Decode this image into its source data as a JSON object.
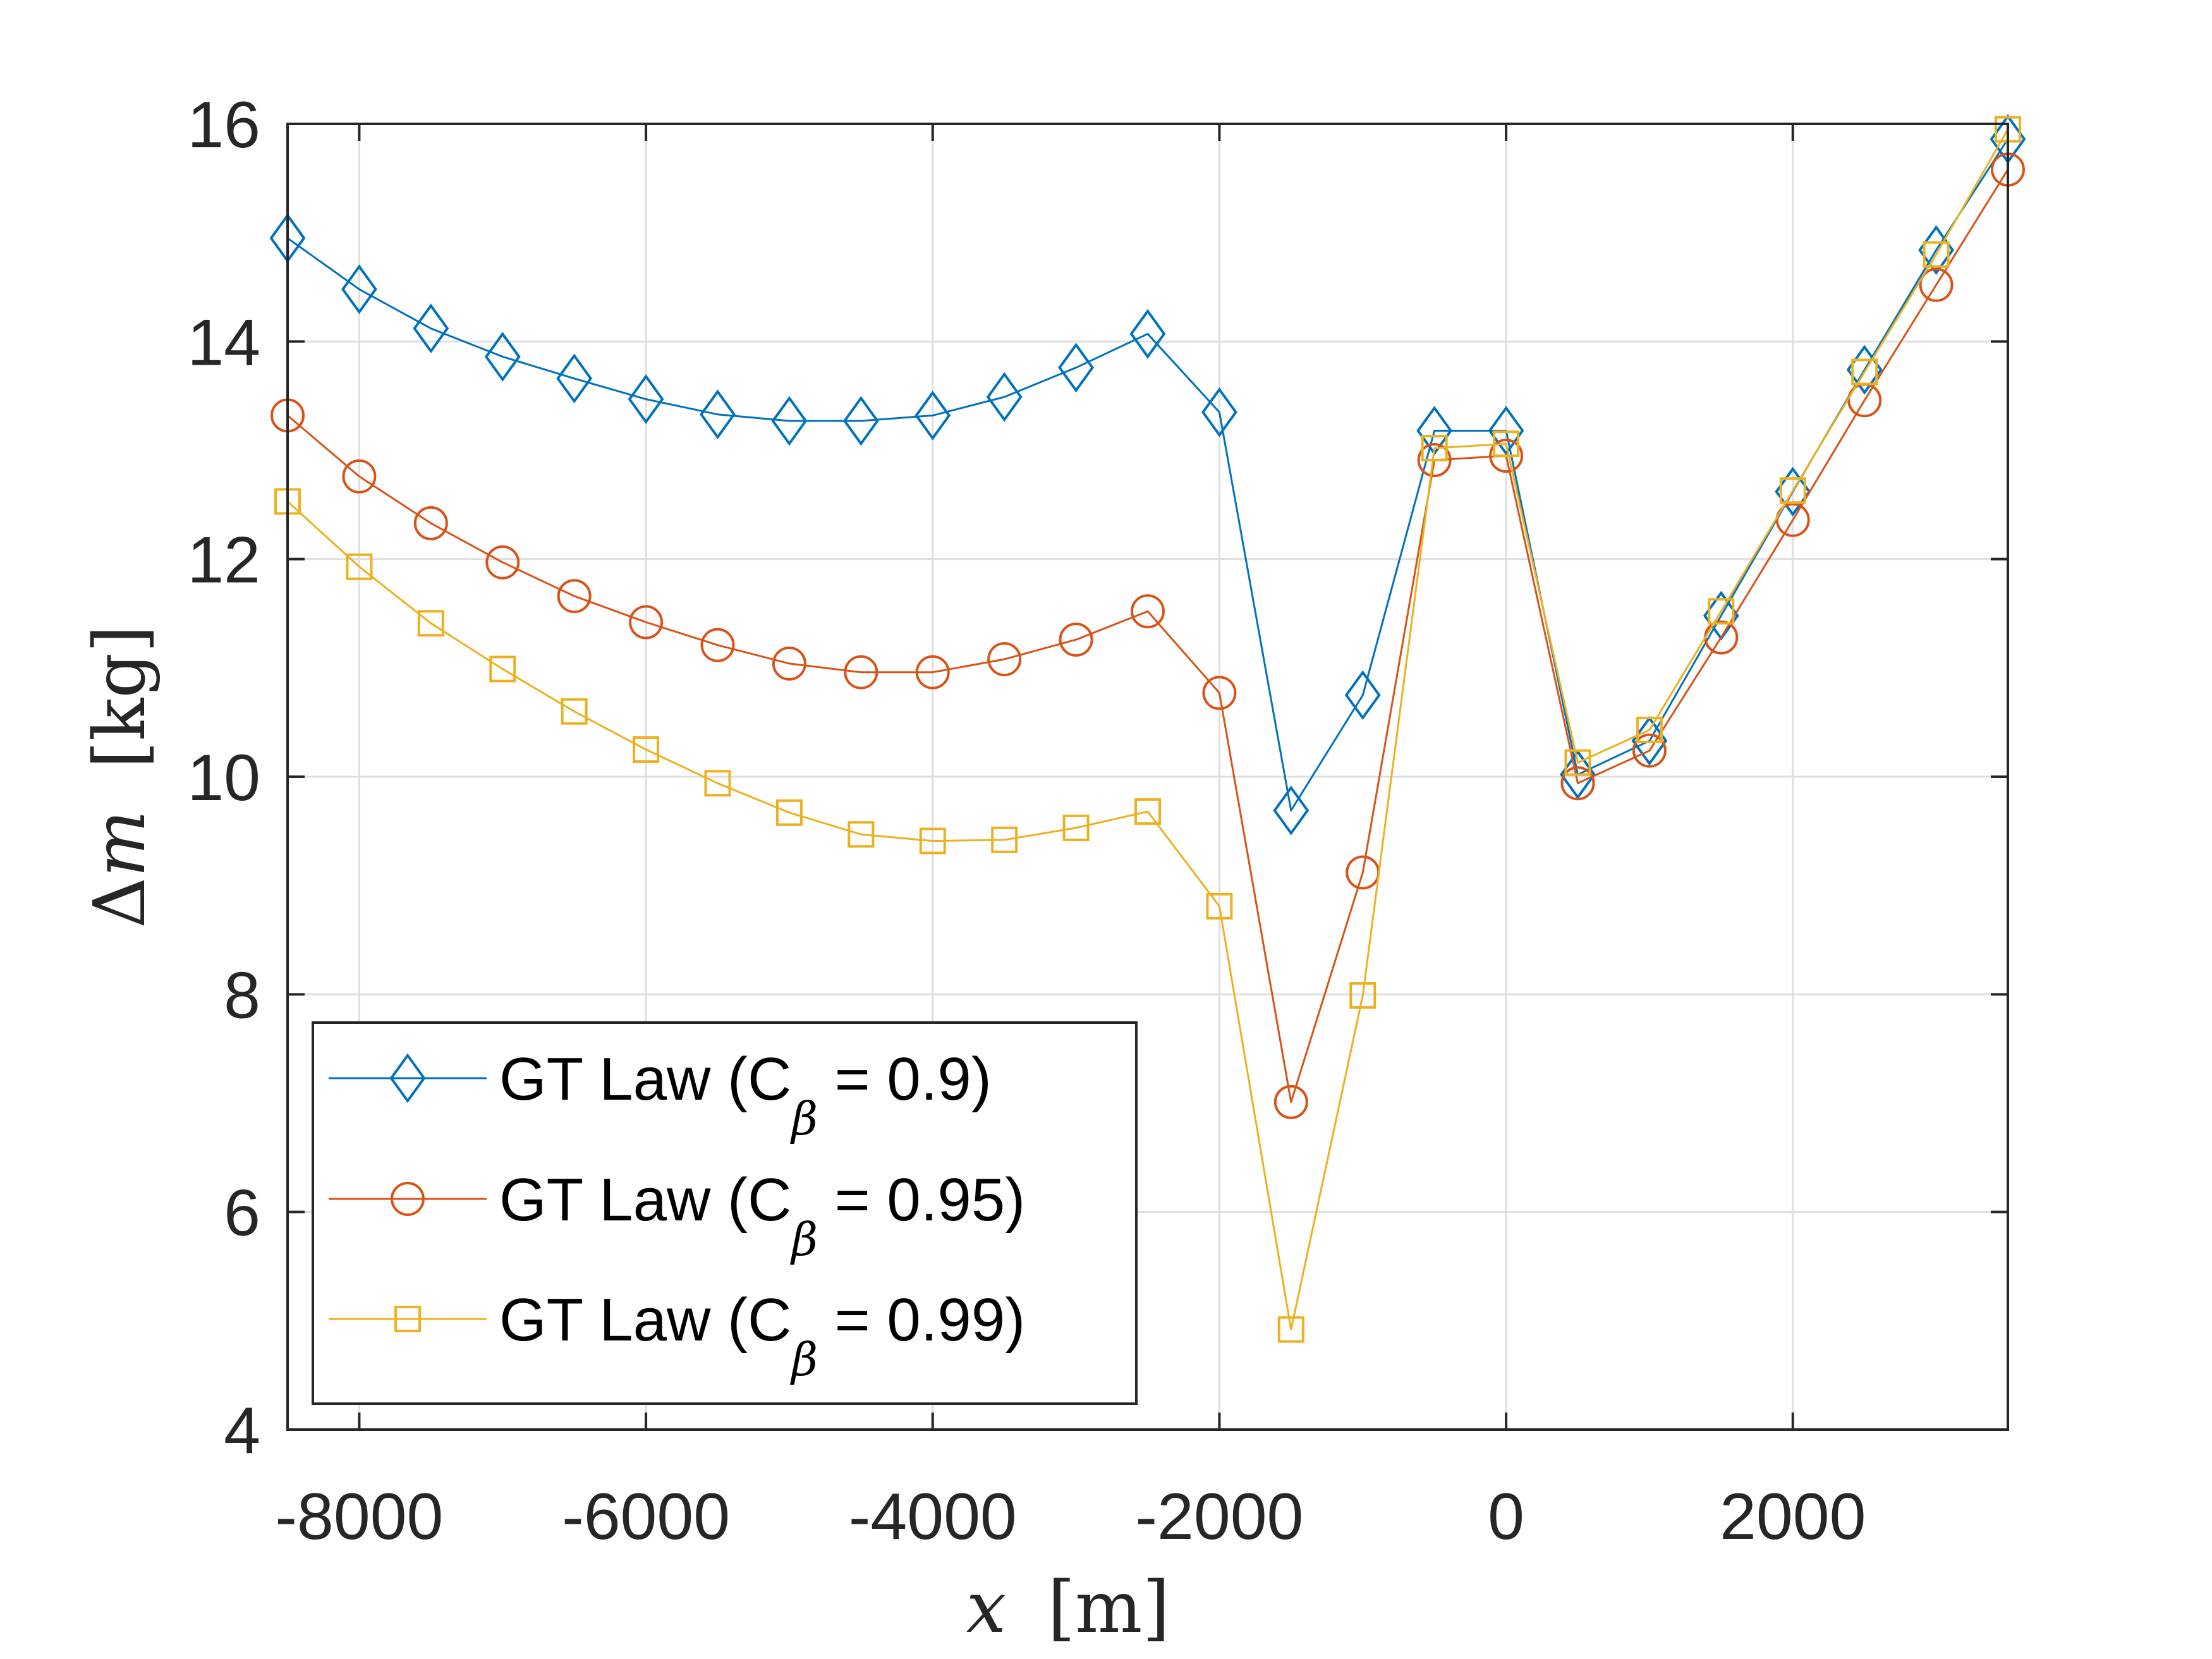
{
  "chart_data": {
    "type": "line",
    "title": "",
    "xlabel": {
      "var": "x",
      "unit": "[m]"
    },
    "ylabel": {
      "var": "Δm",
      "unit": "[kg]"
    },
    "xlim": [
      -8500,
      3500
    ],
    "ylim": [
      4,
      16
    ],
    "xticks": [
      -8000,
      -6000,
      -4000,
      -2000,
      0,
      2000
    ],
    "xtick_labels": [
      "-8000",
      "-6000",
      "-4000",
      "-2000",
      "0",
      "2000"
    ],
    "yticks": [
      4,
      6,
      8,
      10,
      12,
      14,
      16
    ],
    "ytick_labels": [
      "4",
      "6",
      "8",
      "10",
      "12",
      "14",
      "16"
    ],
    "grid": true,
    "legend_position": "bottom-left",
    "x": [
      -8500,
      -8000,
      -7500,
      -7000,
      -6500,
      -6000,
      -5500,
      -5000,
      -4500,
      -4000,
      -3500,
      -3000,
      -2500,
      -2000,
      -1500,
      -1000,
      -500,
      0,
      500,
      1000,
      1500,
      2000,
      2500,
      3000,
      3500
    ],
    "series": [
      {
        "name": "GT Law (C_β = 0.9)",
        "legend_main": "GT Law (C",
        "legend_sub": "β",
        "legend_tail": " = 0.9)",
        "color": "#0072BD",
        "marker": "diamond",
        "values": [
          14.95,
          14.48,
          14.12,
          13.86,
          13.66,
          13.47,
          13.33,
          13.27,
          13.27,
          13.32,
          13.49,
          13.76,
          14.07,
          13.35,
          9.69,
          10.75,
          13.18,
          13.18,
          10.02,
          10.33,
          11.48,
          12.62,
          13.74,
          14.84,
          15.86
        ]
      },
      {
        "name": "GT Law (C_β = 0.95)",
        "legend_main": "GT Law (C",
        "legend_sub": "β",
        "legend_tail": " = 0.95)",
        "color": "#D95319",
        "marker": "circle",
        "values": [
          13.32,
          12.76,
          12.33,
          11.97,
          11.66,
          11.42,
          11.21,
          11.04,
          10.96,
          10.96,
          11.08,
          11.26,
          11.52,
          10.77,
          7.01,
          9.12,
          12.91,
          12.95,
          9.94,
          10.24,
          11.28,
          12.36,
          13.46,
          14.52,
          15.58
        ]
      },
      {
        "name": "GT Law (C_β = 0.99)",
        "legend_main": "GT Law (C",
        "legend_sub": "β",
        "legend_tail": " = 0.99)",
        "color": "#EDB120",
        "marker": "square",
        "values": [
          12.53,
          11.93,
          11.41,
          10.99,
          10.6,
          10.25,
          9.94,
          9.67,
          9.47,
          9.41,
          9.42,
          9.53,
          9.68,
          8.81,
          4.92,
          7.99,
          13.02,
          13.06,
          10.13,
          10.43,
          11.52,
          12.63,
          13.72,
          14.8,
          15.95
        ]
      }
    ]
  }
}
